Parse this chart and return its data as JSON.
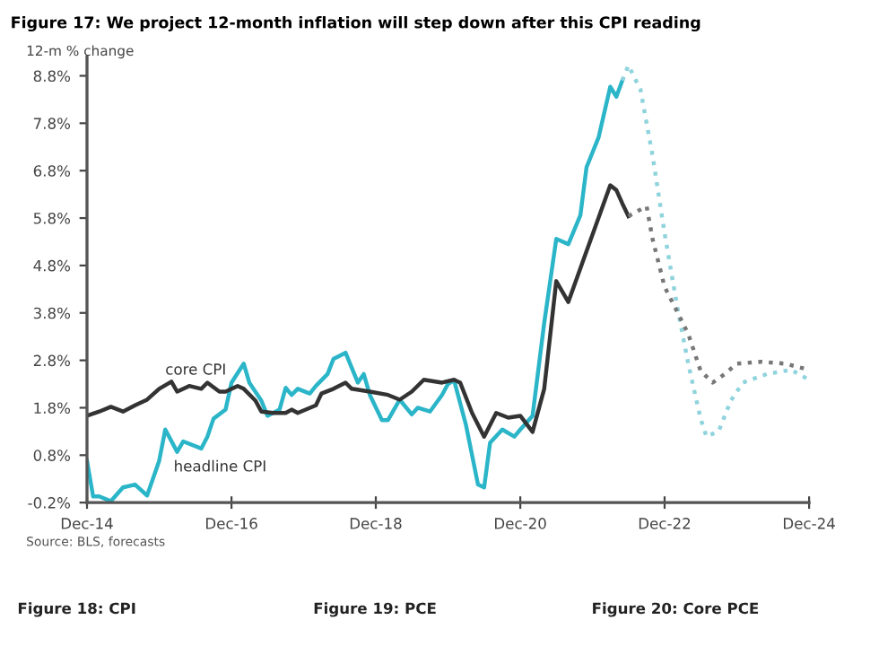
{
  "chart_data": {
    "type": "line",
    "title": "Figure 17: We project 12-month inflation will step down after this CPI reading",
    "ylabel": "12-m % change",
    "series": [
      {
        "color": "#2bb5c8",
        "line_style": "solid",
        "x": [
          "2014-12",
          "2015-01",
          "2015-02",
          "2015-04",
          "2015-06",
          "2015-08",
          "2015-10",
          "2015-12",
          "2016-01",
          "2016-03",
          "2016-04",
          "2016-07",
          "2016-08",
          "2016-09",
          "2016-11",
          "2016-12",
          "2017-02",
          "2017-03",
          "2017-05",
          "2017-06",
          "2017-08",
          "2017-09",
          "2017-10",
          "2017-11",
          "2018-01",
          "2018-02",
          "2018-04",
          "2018-05",
          "2018-07",
          "2018-09",
          "2018-10",
          "2018-11",
          "2019-01",
          "2019-02",
          "2019-04",
          "2019-06",
          "2019-07",
          "2019-09",
          "2019-11",
          "2019-12",
          "2020-01",
          "2020-03",
          "2020-05",
          "2020-06",
          "2020-07",
          "2020-09",
          "2020-11",
          "2020-12",
          "2021-02",
          "2021-04",
          "2021-06",
          "2021-08",
          "2021-10",
          "2021-11",
          "2022-01",
          "2022-03",
          "2022-04",
          "2022-05"
        ],
        "values": [
          0.68,
          -0.07,
          -0.07,
          -0.17,
          0.12,
          0.18,
          -0.05,
          0.68,
          1.34,
          0.87,
          1.09,
          0.94,
          1.19,
          1.57,
          1.76,
          2.33,
          2.73,
          2.33,
          1.95,
          1.63,
          1.76,
          2.22,
          2.07,
          2.2,
          2.1,
          2.26,
          2.51,
          2.83,
          2.96,
          2.33,
          2.51,
          2.07,
          1.54,
          1.54,
          1.97,
          1.66,
          1.8,
          1.72,
          2.07,
          2.3,
          2.38,
          1.44,
          0.18,
          0.12,
          1.06,
          1.34,
          1.19,
          1.34,
          1.63,
          3.59,
          5.36,
          5.25,
          5.86,
          6.87,
          7.5,
          8.57,
          8.36,
          8.7
        ]
      },
      {
        "color": "#8fd3dd",
        "line_style": "dotted",
        "x": [
          "2022-05",
          "2022-06",
          "2022-08",
          "2022-10",
          "2022-12",
          "2023-02",
          "2023-04",
          "2023-06",
          "2023-07",
          "2023-09",
          "2023-11",
          "2024-01",
          "2024-05",
          "2024-09",
          "2024-12"
        ],
        "values": [
          8.7,
          9.02,
          8.51,
          7.12,
          5.48,
          3.97,
          2.7,
          1.57,
          1.19,
          1.31,
          1.95,
          2.33,
          2.51,
          2.6,
          2.39
        ]
      },
      {
        "color": "#333333",
        "line_style": "solid",
        "x": [
          "2014-12",
          "2015-02",
          "2015-04",
          "2015-06",
          "2015-08",
          "2015-10",
          "2015-12",
          "2016-02",
          "2016-03",
          "2016-05",
          "2016-07",
          "2016-08",
          "2016-10",
          "2016-11",
          "2017-01",
          "2017-02",
          "2017-04",
          "2017-05",
          "2017-07",
          "2017-09",
          "2017-10",
          "2017-11",
          "2018-02",
          "2018-03",
          "2018-05",
          "2018-07",
          "2018-08",
          "2018-11",
          "2019-02",
          "2019-04",
          "2019-06",
          "2019-08",
          "2019-11",
          "2020-01",
          "2020-02",
          "2020-04",
          "2020-06",
          "2020-08",
          "2020-10",
          "2020-12",
          "2021-02",
          "2021-04",
          "2021-06",
          "2021-08",
          "2021-11",
          "2022-03",
          "2022-04",
          "2022-05",
          "2022-06"
        ],
        "values": [
          1.63,
          1.72,
          1.82,
          1.72,
          1.85,
          1.97,
          2.2,
          2.35,
          2.14,
          2.26,
          2.2,
          2.33,
          2.14,
          2.14,
          2.26,
          2.2,
          1.95,
          1.72,
          1.69,
          1.69,
          1.76,
          1.69,
          1.85,
          2.1,
          2.2,
          2.33,
          2.2,
          2.14,
          2.07,
          1.97,
          2.14,
          2.39,
          2.33,
          2.39,
          2.33,
          1.69,
          1.19,
          1.69,
          1.59,
          1.63,
          1.29,
          2.2,
          4.47,
          4.03,
          5.1,
          6.49,
          6.39,
          6.11,
          5.84
        ]
      },
      {
        "color": "#777777",
        "line_style": "dotted",
        "x": [
          "2022-06",
          "2022-09",
          "2022-10",
          "2022-12",
          "2023-02",
          "2023-04",
          "2023-06",
          "2023-08",
          "2023-10",
          "2023-12",
          "2024-04",
          "2024-08",
          "2024-12"
        ],
        "values": [
          5.84,
          6.05,
          5.36,
          4.35,
          3.84,
          3.34,
          2.58,
          2.33,
          2.51,
          2.73,
          2.77,
          2.73,
          2.6
        ]
      }
    ],
    "xlim": [
      "2014-12",
      "2024-12"
    ],
    "xticks": [
      {
        "value": "2014-12",
        "label": "Dec-14"
      },
      {
        "value": "2016-12",
        "label": "Dec-16"
      },
      {
        "value": "2018-12",
        "label": "Dec-18"
      },
      {
        "value": "2020-12",
        "label": "Dec-20"
      },
      {
        "value": "2022-12",
        "label": "Dec-22"
      },
      {
        "value": "2024-12",
        "label": "Dec-24"
      }
    ],
    "ylim": [
      -0.2,
      9.2
    ],
    "yticks": [
      {
        "value": -0.2,
        "label": "-0.2%"
      },
      {
        "value": 0.8,
        "label": "0.8%"
      },
      {
        "value": 1.8,
        "label": "1.8%"
      },
      {
        "value": 2.8,
        "label": "2.8%"
      },
      {
        "value": 3.8,
        "label": "3.8%"
      },
      {
        "value": 4.8,
        "label": "4.8%"
      },
      {
        "value": 5.8,
        "label": "5.8%"
      },
      {
        "value": 6.8,
        "label": "6.8%"
      },
      {
        "value": 7.8,
        "label": "7.8%"
      },
      {
        "value": 8.8,
        "label": "8.8%"
      }
    ],
    "grid": false,
    "legend": false,
    "annotations": [
      {
        "text": "core CPI",
        "x": "2016-01",
        "y": 2.5
      },
      "headline CPI",
      "Source: BLS, forecasts",
      "Figure 18: CPI",
      "Figure 19: PCE",
      "Figure 20: Core PCE"
    ]
  }
}
